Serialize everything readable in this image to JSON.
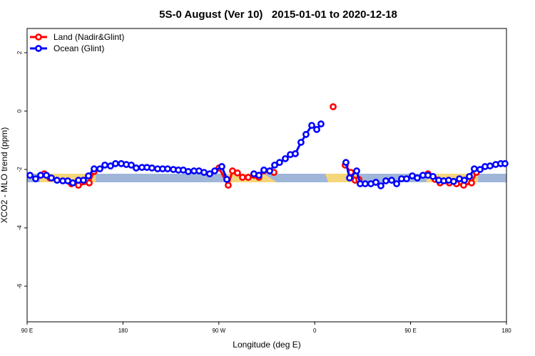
{
  "chart_data": {
    "type": "line",
    "title": "5S-0 August (Ver 10)   2015-01-01 to 2020-12-18",
    "x_label": "Longitude (deg E)",
    "y_label": "XCO2 - MLO trend (ppm)",
    "xlim": [
      90,
      540
    ],
    "ylim": [
      -7.22,
      2.83
    ],
    "xticks": [
      {
        "value": 90,
        "label": "90 E"
      },
      {
        "value": 180,
        "label": "180"
      },
      {
        "value": 270,
        "label": "90 W"
      },
      {
        "value": 360,
        "label": "0"
      },
      {
        "value": 450,
        "label": "90 E"
      },
      {
        "value": 540,
        "label": "180"
      }
    ],
    "yticks": [
      2,
      0,
      -2,
      -4,
      -6
    ],
    "legend": "topleft",
    "series": [
      {
        "name": "Land (Nadir&Glint)",
        "color": "#ff0000",
        "x": [
          106.1,
          111.4,
          null,
          131.5,
          138.2,
          148.3,
          152.9,
          null,
          270.1,
          278.8,
          282.8,
          287.5,
          292.2,
          297.6,
          302.9,
          307.6,
          312.3,
          321.7,
          null,
          377.3,
          null,
          388.6,
          394.0,
          398.0,
          401.4,
          null,
          466.3,
          473.0,
          477.7,
          486.4,
          493.1,
          499.8,
          507.2,
          511.8
        ],
        "values": [
          -2.15,
          -2.29,
          null,
          -2.49,
          -2.54,
          -2.46,
          -2.07,
          null,
          -1.95,
          -2.54,
          -2.05,
          -2.12,
          -2.27,
          -2.27,
          -2.2,
          -2.27,
          -2.05,
          -2.1,
          null,
          0.15,
          null,
          -1.85,
          -2.1,
          -2.37,
          -2.34,
          null,
          -2.15,
          -2.34,
          -2.46,
          -2.46,
          -2.49,
          -2.54,
          -2.46,
          -2.1
        ]
      },
      {
        "name": "Ocean (Glint)",
        "color": "#0000ff",
        "x": [
          92.7,
          98.0,
          102.7,
          108.1,
          112.8,
          118.1,
          123.5,
          128.2,
          132.9,
          138.2,
          142.9,
          147.6,
          152.9,
          158.3,
          163.0,
          168.3,
          173.0,
          178.4,
          183.1,
          187.8,
          192.4,
          197.8,
          202.5,
          207.2,
          212.5,
          217.2,
          221.9,
          227.3,
          232.0,
          236.6,
          241.3,
          246.7,
          251.4,
          256.1,
          261.4,
          266.1,
          272.8,
          277.5,
          null,
          302.9,
          307.6,
          312.3,
          317.7,
          322.4,
          327.0,
          332.4,
          337.1,
          341.8,
          347.1,
          351.8,
          357.2,
          361.9,
          365.9,
          null,
          389.3,
          392.7,
          399.4,
          402.7,
          407.4,
          412.7,
          417.4,
          422.1,
          426.8,
          432.2,
          436.9,
          441.5,
          446.2,
          451.6,
          456.3,
          461.6,
          466.3,
          471.0,
          476.4,
          481.1,
          485.7,
          490.4,
          495.8,
          500.5,
          505.2,
          509.8,
          515.2,
          519.9,
          524.6,
          529.9,
          534.6,
          538.6
        ],
        "values": [
          -2.2,
          -2.32,
          -2.2,
          -2.2,
          -2.29,
          -2.37,
          -2.39,
          -2.39,
          -2.46,
          -2.37,
          -2.37,
          -2.22,
          -1.98,
          -1.98,
          -1.85,
          -1.88,
          -1.8,
          -1.8,
          -1.83,
          -1.85,
          -1.95,
          -1.93,
          -1.93,
          -1.95,
          -1.98,
          -1.98,
          -1.98,
          -2.0,
          -2.02,
          -2.02,
          -2.07,
          -2.05,
          -2.05,
          -2.1,
          -2.15,
          -2.05,
          -1.9,
          -2.34,
          null,
          -2.15,
          -2.2,
          -2.02,
          -2.05,
          -1.85,
          -1.76,
          -1.63,
          -1.49,
          -1.46,
          -1.07,
          -0.8,
          -0.49,
          -0.63,
          -0.44,
          null,
          -1.76,
          -2.29,
          -2.05,
          -2.49,
          -2.49,
          -2.49,
          -2.44,
          -2.56,
          -2.39,
          -2.37,
          -2.49,
          -2.32,
          -2.32,
          -2.22,
          -2.29,
          -2.2,
          -2.2,
          -2.24,
          -2.37,
          -2.39,
          -2.37,
          -2.41,
          -2.32,
          -2.37,
          -2.24,
          -1.98,
          -2.0,
          -1.9,
          -1.88,
          -1.83,
          -1.8,
          -1.8
        ]
      }
    ]
  }
}
